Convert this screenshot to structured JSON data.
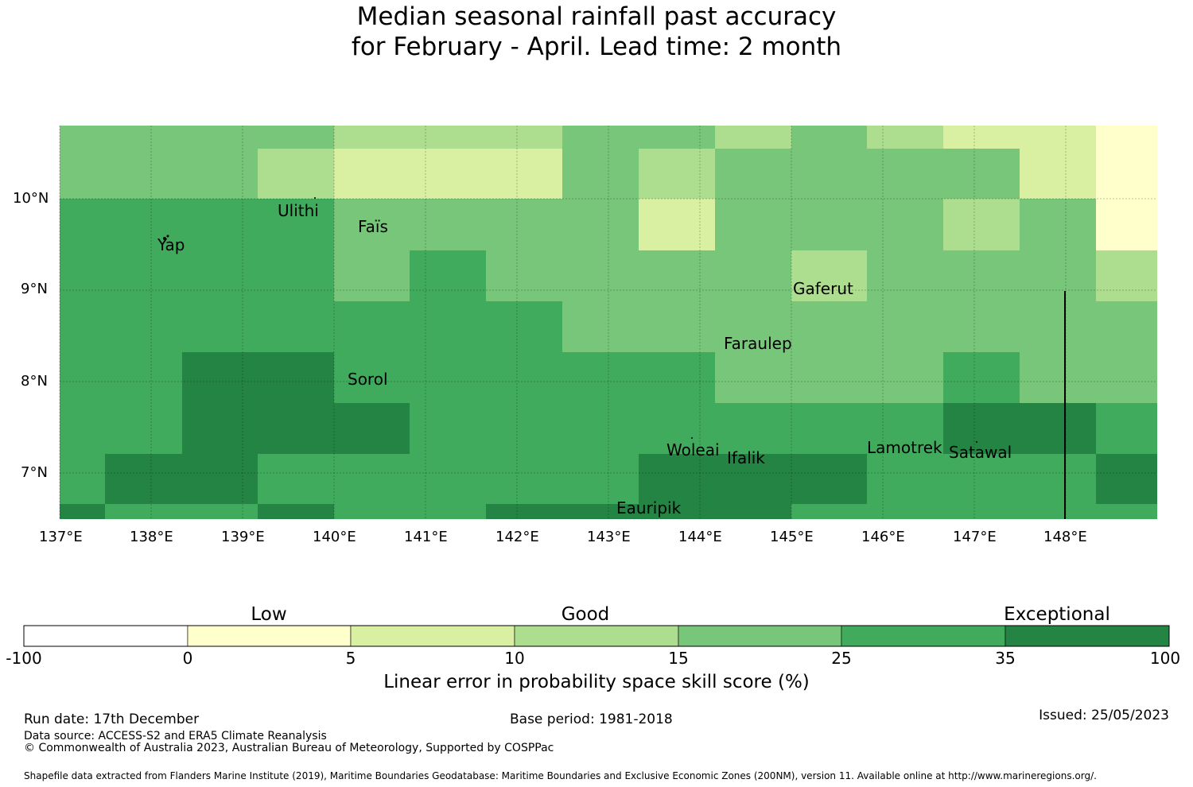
{
  "title": {
    "line1": "Median seasonal rainfall past accuracy",
    "line2": "for February - April. Lead time: 2 month"
  },
  "map": {
    "lon_range": [
      137,
      149
    ],
    "lat_range": [
      6.5,
      10.8
    ],
    "lon_ticks": [
      "137°E",
      "138°E",
      "139°E",
      "140°E",
      "141°E",
      "142°E",
      "143°E",
      "144°E",
      "145°E",
      "146°E",
      "147°E",
      "148°E"
    ],
    "lat_ticks": [
      "10°N",
      "9°N",
      "8°N",
      "7°N"
    ],
    "places": [
      "Yap",
      "Ulithi",
      "Faïs",
      "Gaferut",
      "Faraulep",
      "Sorol",
      "Woleai",
      "Ifalik",
      "Lamotrek",
      "Satawal",
      "Eauripik"
    ]
  },
  "colors": {
    "c0": "#ffffff",
    "c1": "#ffffcc",
    "c2": "#d9f0a3",
    "c3": "#addd8e",
    "c4": "#78c679",
    "c5": "#41ab5d",
    "c6": "#238443"
  },
  "colorbar": {
    "categories": [
      "Low",
      "Good",
      "Exceptional"
    ],
    "ticks": [
      "-100",
      "0",
      "5",
      "10",
      "15",
      "25",
      "35",
      "100"
    ],
    "label": "Linear error in probability space skill score (%)"
  },
  "footer": {
    "run_date": "Run date: 17th December",
    "base_period": "Base period: 1981-2018",
    "issued": "Issued: 25/05/2023",
    "data_source": "Data source: ACCESS-S2 and ERA5 Climate Reanalysis",
    "copyright": "© Commonwealth of Australia 2023, Australian Bureau of Meteorology, Supported by COSPPac",
    "shapefile": "Shapefile data extracted from Flanders Marine Institute (2019), Maritime Boundaries Geodatabase: Maritime Boundaries and Exclusive Economic Zones (200NM), version 11. Available online at http://www.marineregions.org/."
  }
}
